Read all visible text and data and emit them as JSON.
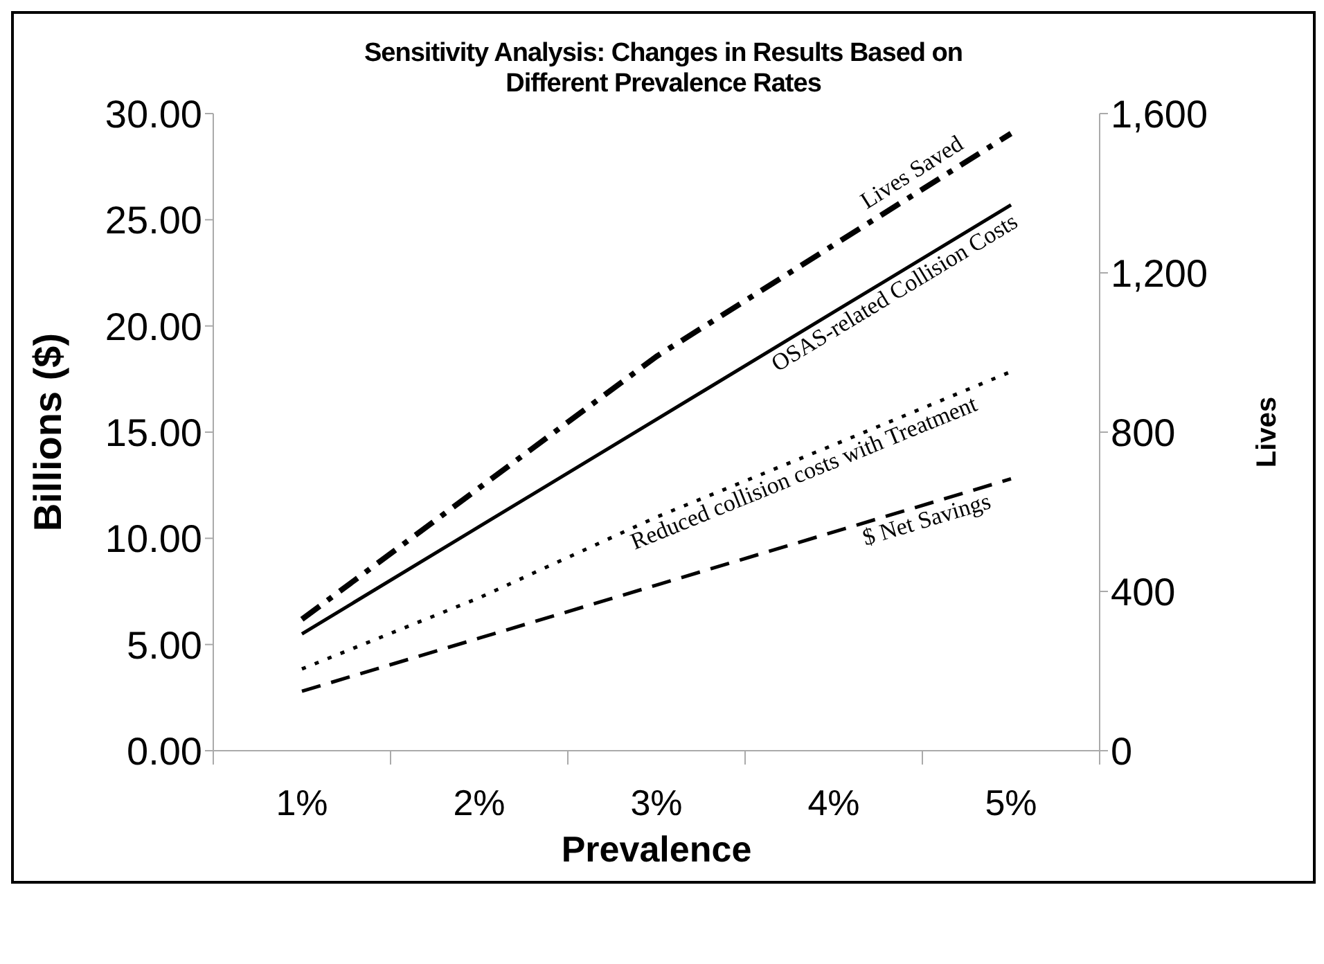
{
  "chart_data": {
    "type": "line",
    "title": "Sensitivity Analysis: Changes in Results Based on Different Prevalence Rates",
    "xlabel": "Prevalence",
    "ylabel": "Billions ($)",
    "y2label": "Lives",
    "categories": [
      "1%",
      "2%",
      "3%",
      "4%",
      "5%"
    ],
    "ylim": [
      0,
      30
    ],
    "yticks": [
      {
        "value": 0,
        "label": "0.00"
      },
      {
        "value": 5,
        "label": "5.00"
      },
      {
        "value": 10,
        "label": "10.00"
      },
      {
        "value": 15,
        "label": "15.00"
      },
      {
        "value": 20,
        "label": "20.00"
      },
      {
        "value": 25,
        "label": "25.00"
      },
      {
        "value": 30,
        "label": "30.00"
      }
    ],
    "y2lim": [
      0,
      1600
    ],
    "y2ticks": [
      0,
      400,
      800,
      {
        "value": 1200,
        "label": "1,200"
      },
      {
        "value": 1600,
        "label": "1,600"
      }
    ],
    "grid": false,
    "marker": "none",
    "series": [
      {
        "name": "Lives Saved",
        "color": "#000000",
        "axis": "y2",
        "line_style": "dashdot",
        "values": [
          330,
          660,
          990,
          1270,
          1550
        ]
      },
      {
        "name": "OSAS-related Collision Costs",
        "color": "#000000",
        "line_style": "solid",
        "values": [
          5.5,
          10.55,
          15.6,
          20.65,
          25.7
        ]
      },
      {
        "name": "Reduced collision costs with Treatment",
        "color": "#000000",
        "line_style": "dotted",
        "values": [
          3.85,
          7.2,
          11.0,
          14.4,
          17.85
        ]
      },
      {
        "name": "$ Net Savings",
        "color": "#000000",
        "line_style": "dashed",
        "values": [
          2.8,
          5.3,
          7.8,
          10.3,
          12.8
        ]
      }
    ]
  }
}
